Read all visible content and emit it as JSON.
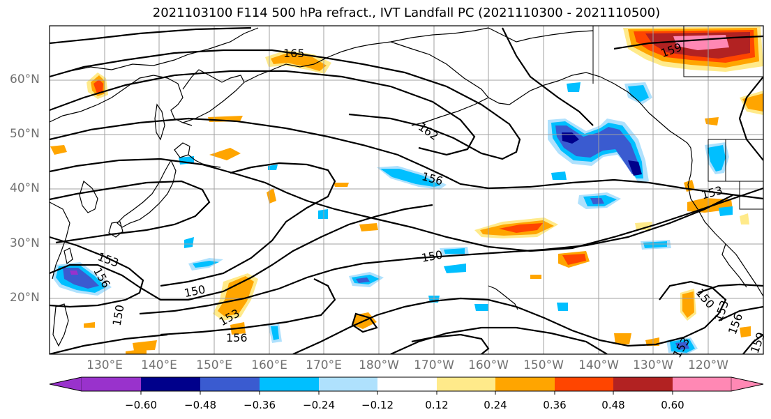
{
  "title": "2021103100 F114 500 hPa refract., IVT Landfall PC (2021110300 - 2021110500)",
  "latitude_labels": [
    "60°N",
    "50°N",
    "40°N",
    "30°N",
    "20°N"
  ],
  "longitude_labels": [
    "130°E",
    "140°E",
    "150°E",
    "160°E",
    "170°E",
    "180°W",
    "170°W",
    "160°W",
    "150°W",
    "140°W",
    "130°W",
    "120°W"
  ],
  "contour_labels": [
    "165",
    "162",
    "159",
    "156",
    "153",
    "150",
    "150",
    "153",
    "156",
    "153",
    "150",
    "156",
    "153",
    "150",
    "153",
    "156",
    "159"
  ],
  "colorbar": {
    "tick_labels": [
      "−0.60",
      "−0.48",
      "−0.36",
      "−0.24",
      "−0.12",
      "0.12",
      "0.24",
      "0.36",
      "0.48",
      "0.60"
    ],
    "colors": [
      "#9932cc",
      "#00008b",
      "#3a5bd0",
      "#00bfff",
      "#afe1fd",
      "#ffffff",
      "#ffea8a",
      "#ffa500",
      "#ff4500",
      "#b22222",
      "#ff88b4"
    ],
    "extend": "both"
  },
  "colors": {
    "contour": "#000000",
    "coastline": "#000000",
    "grid": "#a0a0a0"
  }
}
